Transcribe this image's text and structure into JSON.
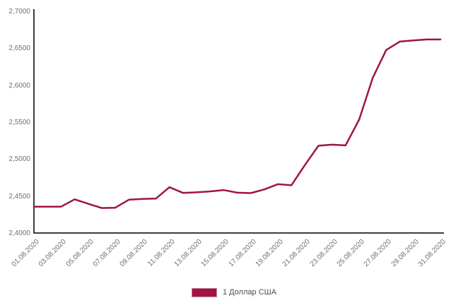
{
  "chart_data": {
    "type": "line",
    "title": "",
    "grid": false,
    "legend_position": "bottom",
    "series": [
      {
        "name": "1 Доллар США",
        "color": "#a01347",
        "x": [
          "01.08.2020",
          "02.08.2020",
          "03.08.2020",
          "04.08.2020",
          "05.08.2020",
          "06.08.2020",
          "07.08.2020",
          "08.08.2020",
          "09.08.2020",
          "10.08.2020",
          "11.08.2020",
          "12.08.2020",
          "13.08.2020",
          "14.08.2020",
          "15.08.2020",
          "16.08.2020",
          "17.08.2020",
          "18.08.2020",
          "19.08.2020",
          "20.08.2020",
          "21.08.2020",
          "22.08.2020",
          "23.08.2020",
          "24.08.2020",
          "25.08.2020",
          "26.08.2020",
          "27.08.2020",
          "28.08.2020",
          "29.08.2020",
          "30.08.2020",
          "31.08.2020"
        ],
        "values": [
          2.4365,
          2.4365,
          2.4365,
          2.4465,
          2.4405,
          2.4348,
          2.4352,
          2.446,
          2.447,
          2.4475,
          2.463,
          2.4552,
          2.456,
          2.4572,
          2.459,
          2.4555,
          2.4549,
          2.4599,
          2.467,
          2.4655,
          2.493,
          2.519,
          2.5205,
          2.5195,
          2.5543,
          2.6108,
          2.6486,
          2.66,
          2.6615,
          2.6628,
          2.6628
        ]
      }
    ],
    "y_axis": {
      "min": 2.4,
      "max": 2.7,
      "tick_step": 0.05,
      "tick_values": [
        2.4,
        2.45,
        2.5,
        2.55,
        2.6,
        2.65,
        2.7
      ],
      "tick_labels": [
        "2,4000",
        "2,4500",
        "2,5000",
        "2,5500",
        "2,6000",
        "2,6500",
        "2,7000"
      ]
    },
    "x_axis": {
      "tick_labels": [
        "01.08.2020",
        "03.08.2020",
        "05.08.2020",
        "07.08.2020",
        "09.08.2020",
        "11.08.2020",
        "13.08.2020",
        "15.08.2020",
        "17.08.2020",
        "19.08.2020",
        "21.08.2020",
        "23.08.2020",
        "25.08.2020",
        "27.08.2020",
        "29.08.2020",
        "31.08.2020"
      ],
      "tick_day_step": 2
    }
  },
  "legend": {
    "label": "1 Доллар США",
    "swatch_color": "#a01347"
  },
  "colors": {
    "line": "#a01347",
    "axis": "#3d3d3d",
    "tick_text": "#6e6e6e",
    "legend_text": "#4d4d4d",
    "background": "#ffffff"
  }
}
